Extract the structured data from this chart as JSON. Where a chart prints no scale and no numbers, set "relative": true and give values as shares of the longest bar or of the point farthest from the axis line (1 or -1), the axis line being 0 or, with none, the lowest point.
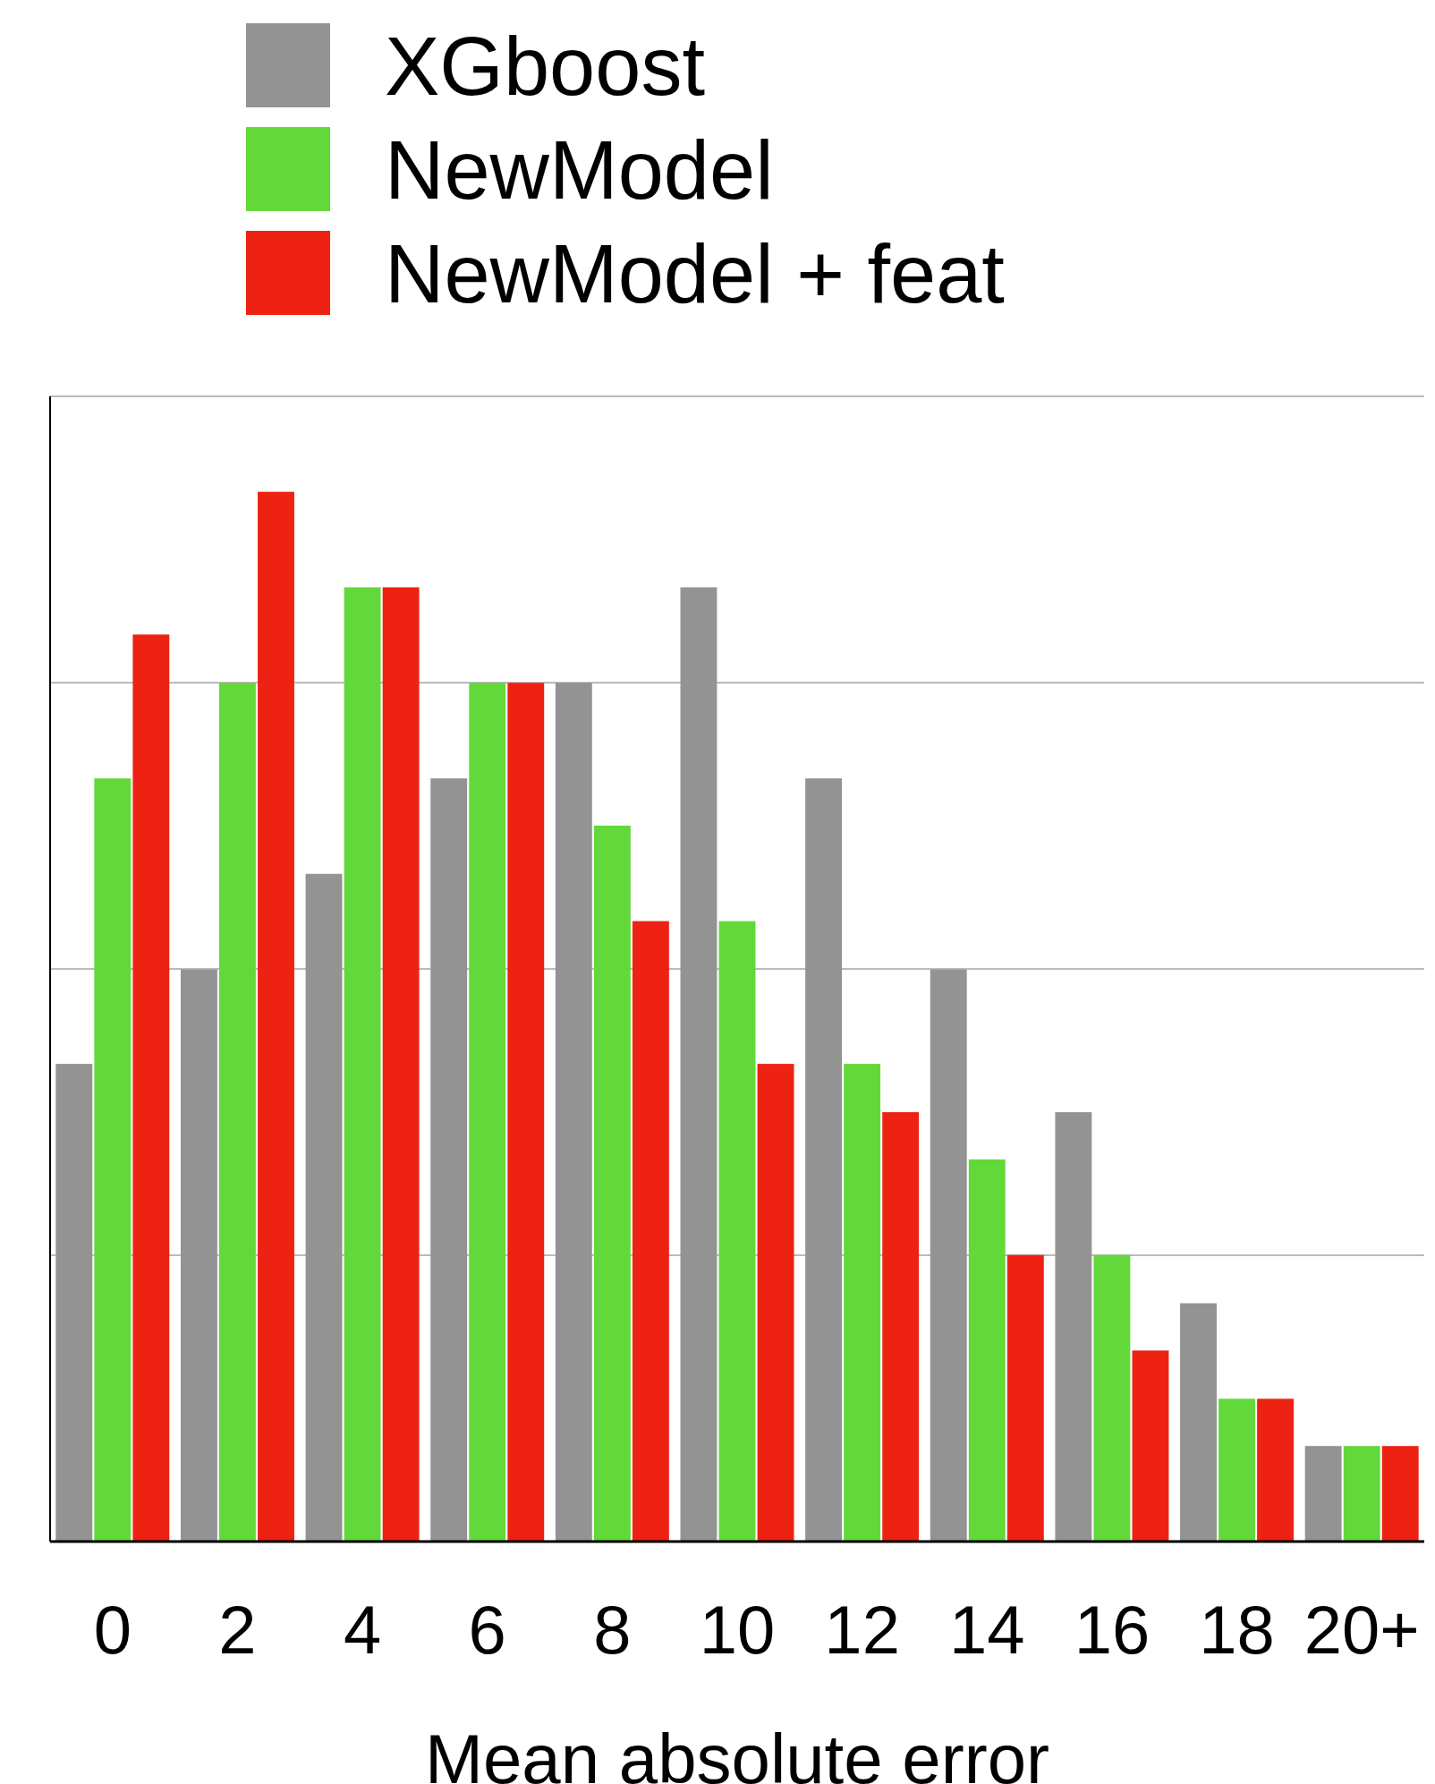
{
  "chart_data": {
    "type": "bar",
    "xlabel": "Mean absolute error",
    "categories": [
      "0",
      "2",
      "4",
      "6",
      "8",
      "10",
      "12",
      "14",
      "16",
      "18",
      "20+"
    ],
    "relative": true,
    "grid": "y",
    "legend": "top left",
    "series": [
      {
        "name": "XGboost",
        "color": "#939393",
        "values": [
          0.455,
          0.545,
          0.636,
          0.727,
          0.818,
          0.909,
          0.727,
          0.545,
          0.409,
          0.227,
          0.091
        ]
      },
      {
        "name": "NewModel",
        "color": "#63d83a",
        "values": [
          0.727,
          0.818,
          0.909,
          0.818,
          0.682,
          0.591,
          0.455,
          0.364,
          0.273,
          0.136,
          0.091
        ]
      },
      {
        "name": "NewModel + feat",
        "color": "#ee2212",
        "values": [
          0.864,
          1,
          0.909,
          0.818,
          0.591,
          0.455,
          0.409,
          0.273,
          0.182,
          0.136,
          0.091
        ]
      }
    ]
  }
}
